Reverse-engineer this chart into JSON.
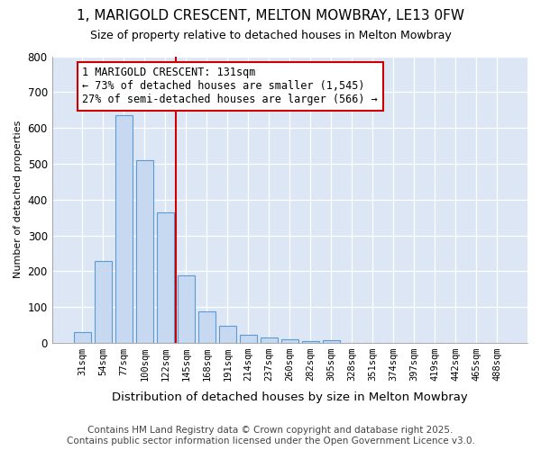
{
  "title": "1, MARIGOLD CRESCENT, MELTON MOWBRAY, LE13 0FW",
  "subtitle": "Size of property relative to detached houses in Melton Mowbray",
  "xlabel": "Distribution of detached houses by size in Melton Mowbray",
  "ylabel": "Number of detached properties",
  "categories": [
    "31sqm",
    "54sqm",
    "77sqm",
    "100sqm",
    "122sqm",
    "145sqm",
    "168sqm",
    "191sqm",
    "214sqm",
    "237sqm",
    "260sqm",
    "282sqm",
    "305sqm",
    "328sqm",
    "351sqm",
    "374sqm",
    "397sqm",
    "419sqm",
    "442sqm",
    "465sqm",
    "488sqm"
  ],
  "values": [
    30,
    228,
    635,
    510,
    363,
    188,
    88,
    48,
    22,
    15,
    10,
    5,
    7,
    1,
    1,
    1,
    1,
    1,
    1,
    1,
    1
  ],
  "bar_color": "#c6d9f0",
  "bar_edge_color": "#5b9bd5",
  "vline_x_index": 4,
  "vline_color": "#cc0000",
  "annotation_text": "1 MARIGOLD CRESCENT: 131sqm\n← 73% of detached houses are smaller (1,545)\n27% of semi-detached houses are larger (566) →",
  "annotation_box_color": "#ffffff",
  "annotation_box_edge_color": "#cc0000",
  "ylim": [
    0,
    800
  ],
  "yticks": [
    0,
    100,
    200,
    300,
    400,
    500,
    600,
    700,
    800
  ],
  "bg_color": "#ffffff",
  "plot_bg_color": "#dce6f5",
  "grid_color": "#ffffff",
  "footer_line1": "Contains HM Land Registry data © Crown copyright and database right 2025.",
  "footer_line2": "Contains public sector information licensed under the Open Government Licence v3.0.",
  "title_fontsize": 11,
  "subtitle_fontsize": 9,
  "annotation_fontsize": 8.5,
  "footer_fontsize": 7.5,
  "ylabel_fontsize": 8,
  "xlabel_fontsize": 9.5
}
